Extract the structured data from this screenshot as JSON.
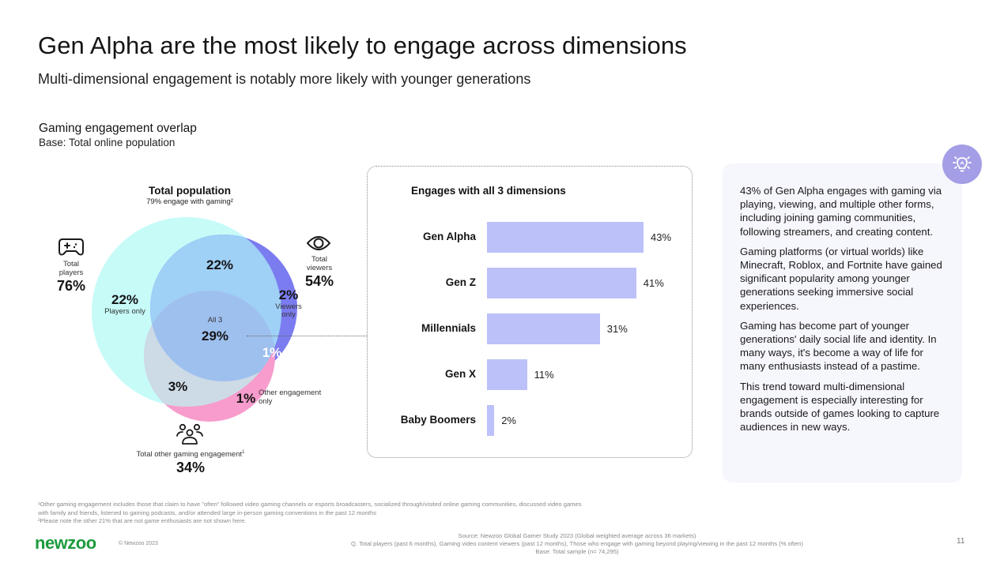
{
  "header": {
    "title": "Gen Alpha are the most likely to engage across dimensions",
    "subtitle": "Multi-dimensional engagement is notably more likely with younger generations"
  },
  "section": {
    "title": "Gaming engagement overlap",
    "base": "Base: Total online population"
  },
  "venn": {
    "heading": "Total population",
    "subheading": "79% engage with gaming²",
    "players": {
      "icon": "gamepad-icon",
      "label": "Total players",
      "label_line1": "Total",
      "label_line2": "players",
      "value": "76%"
    },
    "viewers": {
      "icon": "eye-icon",
      "label_line1": "Total",
      "label_line2": "viewers",
      "value": "54%"
    },
    "other": {
      "icon": "people-group-icon",
      "label": "Total other gaming engagement",
      "footnote_mark": "1",
      "value": "34%"
    },
    "regions": {
      "players_only": {
        "value": "22%",
        "label": "Players only"
      },
      "players_viewers": {
        "value": "22%"
      },
      "all_three": {
        "value": "29%",
        "label": "All 3"
      },
      "viewers_only": {
        "value": "2%",
        "label_line1": "Viewers",
        "label_line2": "only"
      },
      "viewers_other": {
        "value": "1%"
      },
      "players_other": {
        "value": "3%"
      },
      "other_only": {
        "value": "1%",
        "label_line1": "Other engagement",
        "label_line2": "only"
      }
    },
    "colors": {
      "players": "#c6fbf8",
      "viewers": "#7b7cf0",
      "other": "#f79ccc",
      "players_viewers": "#9fd0f6",
      "all_three": "#9ec0ef",
      "players_other": "#cddbe6"
    }
  },
  "chart_data": {
    "type": "bar",
    "orientation": "horizontal",
    "title": "Engages with all 3 dimensions",
    "categories": [
      "Gen Alpha",
      "Gen Z",
      "Millennials",
      "Gen X",
      "Baby Boomers"
    ],
    "values": [
      43,
      41,
      31,
      11,
      2
    ],
    "value_labels": [
      "43%",
      "41%",
      "31%",
      "11%",
      "2%"
    ],
    "unit": "%",
    "xlabel": "",
    "ylabel": "",
    "xlim": [
      0,
      43
    ],
    "grid": false,
    "bar_color": "#bcc1fa"
  },
  "insight": {
    "icon": "lightbulb-icon",
    "icon_bg": "#a49ee6",
    "paragraphs": [
      "43% of Gen Alpha engages with gaming via playing, viewing, and multiple other forms, including joining gaming communities, following streamers, and creating content.",
      "Gaming platforms (or virtual worlds) like Minecraft, Roblox, and Fortnite have gained significant popularity among younger generations seeking immersive social experiences.",
      "Gaming has become part of younger generations' daily social life and identity. In many ways, it's become a way of life for many enthusiasts instead of a pastime.",
      "This trend toward multi-dimensional engagement is especially interesting for brands outside of games looking to capture audiences in new ways."
    ]
  },
  "footnotes": [
    "¹Other gaming engagement includes those that claim to have \"often\" followed video gaming channels or esports broadcasters, socialized through/visited online gaming communities, discussed video games",
    "with family and friends, listened to gaming podcasts, and/or attended large in-person gaming conventions in the past 12 months",
    "²Please note the other 21% that are not game enthusiasts are not shown here."
  ],
  "footer": {
    "logo": "newzoo",
    "logo_color": "#1c9b3d",
    "copyright": "© Newzoo 2023",
    "source_lines": [
      "Source: Newzoo Global Gamer Study 2023 (Global weighted average across 36 markets)",
      "Q. Total players (past 6 months), Gaming video content viewers (past 12 months), Those who engage with gaming beyond playing/viewing in the past 12 months (% often)",
      "Base: Total sample (n= 74,295)"
    ],
    "page_number": "11"
  }
}
